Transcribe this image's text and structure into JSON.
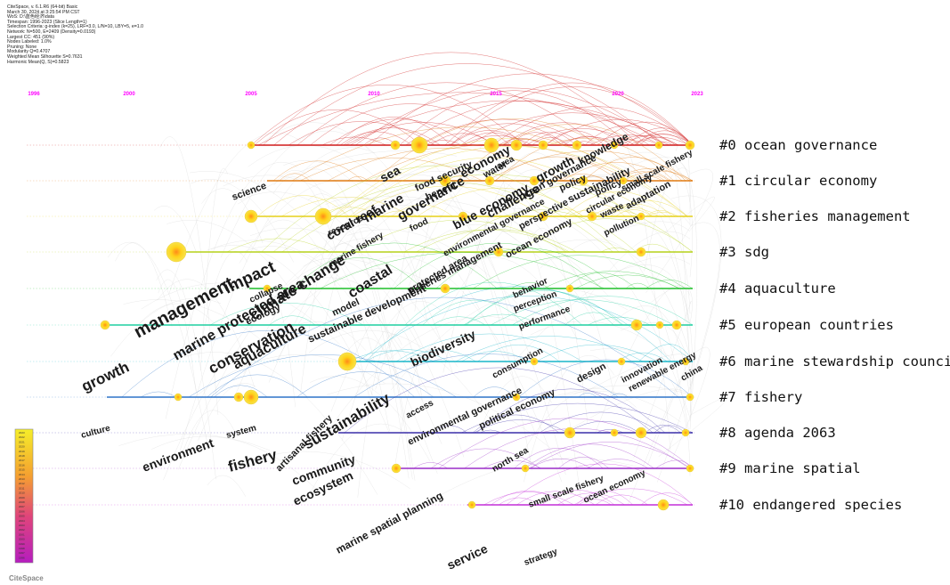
{
  "info_lines": [
    "CiteSpace, v. 6.1.R6 (64-bit) Basic",
    "March 30, 2024 at 3:25:54 PM CST",
    "WoS: D:\\蓝色经济\\data",
    "Timespan: 1996-2023 (Slice Length=1)",
    "Selection Criteria: g-index (k=25), LRF=3.0, L/N=10, LBY=5, e=1.0",
    "Network: N=500, E=2409 (Density=0.0193)",
    "Largest CC: 451 (90%)",
    "Nodes Labeled: 1.0%",
    "Pruning: None",
    "Modularity Q=0.4707",
    "Weighted Mean Silhouette S=0.7631",
    "Harmonic Mean(Q, S)=0.5823"
  ],
  "years": [
    "1996",
    "2000",
    "2005",
    "2010",
    "2015",
    "2020",
    "2023"
  ],
  "clusters": [
    {
      "label": "#0 ocean governance",
      "color": "#d01c1c"
    },
    {
      "label": "#1 circular economy",
      "color": "#e07a10"
    },
    {
      "label": "#2 fisheries management",
      "color": "#e6d11a"
    },
    {
      "label": "#3 sdg",
      "color": "#b5d21a"
    },
    {
      "label": "#4 aquaculture",
      "color": "#1fbf2a"
    },
    {
      "label": "#5 european countries",
      "color": "#1fcfa0"
    },
    {
      "label": "#6 marine stewardship council",
      "color": "#19b6c9"
    },
    {
      "label": "#7 fishery",
      "color": "#2f74c8"
    },
    {
      "label": "#8 agenda 2063",
      "color": "#3a2fa8"
    },
    {
      "label": "#9 marine spatial",
      "color": "#9b2fc8"
    },
    {
      "label": "#10 endangered species",
      "color": "#c42fd8"
    }
  ],
  "keywords": [
    {
      "text": "management"
    },
    {
      "text": "growth"
    },
    {
      "text": "culture"
    },
    {
      "text": "environment"
    },
    {
      "text": "fishery"
    },
    {
      "text": "system"
    },
    {
      "text": "science"
    },
    {
      "text": "impact"
    },
    {
      "text": "marine protected area"
    },
    {
      "text": "conservation"
    },
    {
      "text": "aquaculture"
    },
    {
      "text": "climate change"
    },
    {
      "text": "collapse"
    },
    {
      "text": "ecology"
    },
    {
      "text": "coral reef"
    },
    {
      "text": "resource"
    },
    {
      "text": "marine fishery"
    },
    {
      "text": "coastal"
    },
    {
      "text": "model"
    },
    {
      "text": "sustainable development"
    },
    {
      "text": "sea"
    },
    {
      "text": "marine"
    },
    {
      "text": "governance"
    },
    {
      "text": "benefit"
    },
    {
      "text": "food"
    },
    {
      "text": "food security"
    },
    {
      "text": "economy"
    },
    {
      "text": "blue economy"
    },
    {
      "text": "challenge"
    },
    {
      "text": "growth"
    },
    {
      "text": "area"
    },
    {
      "text": "water"
    },
    {
      "text": "knowledge"
    },
    {
      "text": "ocean governance"
    },
    {
      "text": "sustainability"
    },
    {
      "text": "perspective"
    },
    {
      "text": "ocean economy"
    },
    {
      "text": "circular economy"
    },
    {
      "text": "environmental governance"
    },
    {
      "text": "policy"
    },
    {
      "text": "small scale fishery"
    },
    {
      "text": "adaptation"
    },
    {
      "text": "waste"
    },
    {
      "text": "pollution"
    },
    {
      "text": "fisheries management"
    },
    {
      "text": "protected area"
    },
    {
      "text": "behavior"
    },
    {
      "text": "perception"
    },
    {
      "text": "performance"
    },
    {
      "text": "biodiversity"
    },
    {
      "text": "consumption"
    },
    {
      "text": "design"
    },
    {
      "text": "innovation"
    },
    {
      "text": "renewable energy"
    },
    {
      "text": "china"
    },
    {
      "text": "sustainability"
    },
    {
      "text": "access"
    },
    {
      "text": "environmental governance"
    },
    {
      "text": "political economy"
    },
    {
      "text": "artisanal fishery"
    },
    {
      "text": "community"
    },
    {
      "text": "ecosystem"
    },
    {
      "text": "north sea"
    },
    {
      "text": "small scale fishery"
    },
    {
      "text": "ocean economy"
    },
    {
      "text": "marine spatial planning"
    },
    {
      "text": "service"
    },
    {
      "text": "strategy"
    },
    {
      "text": "policy"
    }
  ],
  "legend_ticks": [
    "2023",
    "2022",
    "2021",
    "2020",
    "2019",
    "2018",
    "2017",
    "2016",
    "2015",
    "2014",
    "2013",
    "2012",
    "2011",
    "2010",
    "2009",
    "2008",
    "2007",
    "2006",
    "2005",
    "2004",
    "2003",
    "2002",
    "2001",
    "2000",
    "1999",
    "1998",
    "1997",
    "1996"
  ],
  "logo": "CiteSpace"
}
